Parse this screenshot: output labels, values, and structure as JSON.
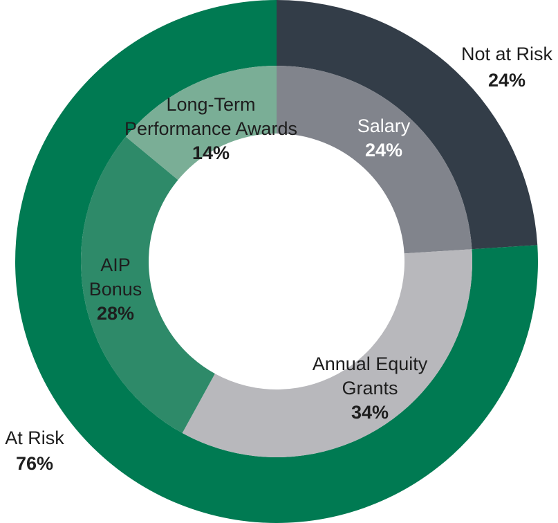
{
  "chart_data": {
    "type": "pie",
    "style": "nested-donut",
    "outer_ring": [
      {
        "label": "Not at Risk",
        "value_label": "24%",
        "value": 24,
        "color": "#333d48",
        "label_color": "#1e1e1e"
      },
      {
        "label": "At Risk",
        "value_label": "76%",
        "value": 76,
        "color": "#007a52",
        "label_color": "#1e1e1e"
      }
    ],
    "inner_ring": [
      {
        "label_lines": [
          "Salary"
        ],
        "value_label": "24%",
        "value": 24,
        "color": "#81848c",
        "label_color": "#ffffff"
      },
      {
        "label_lines": [
          "Annual Equity",
          "Grants"
        ],
        "value_label": "34%",
        "value": 34,
        "color": "#b8b8bc",
        "label_color": "#1e1e1e"
      },
      {
        "label_lines": [
          "AIP",
          "Bonus"
        ],
        "value_label": "28%",
        "value": 28,
        "color": "#2e8a69",
        "label_color": "#1e1e1e"
      },
      {
        "label_lines": [
          "Long-Term",
          "Performance Awards"
        ],
        "value_label": "14%",
        "value": 14,
        "color": "#7aae96",
        "label_color": "#1e1e1e"
      }
    ]
  }
}
